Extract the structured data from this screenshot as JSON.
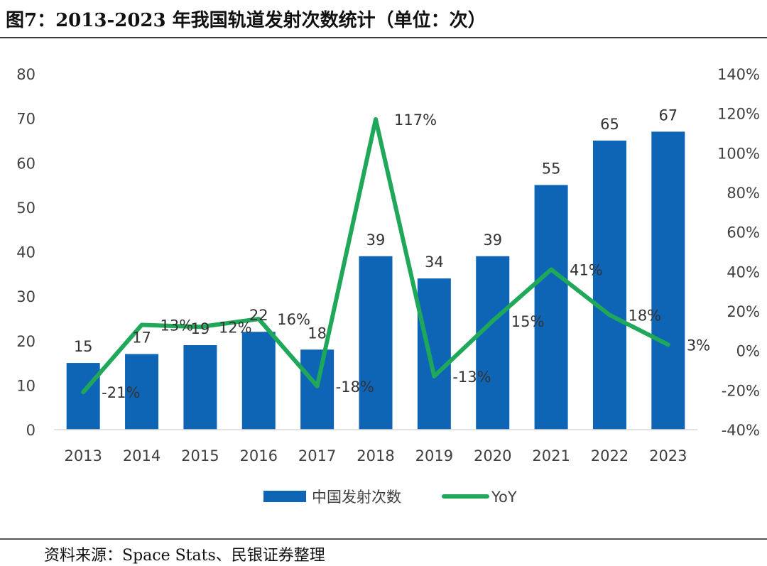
{
  "figure": {
    "title": "图7：2013-2023 年我国轨道发射次数统计（单位：次）",
    "source": "资料来源：Space Stats、民银证券整理"
  },
  "colors": {
    "bar": "#0f65b5",
    "line": "#1fa85a",
    "axis": "#d9d9d9"
  },
  "chart_data": {
    "type": "bar",
    "title": "2013-2023 年我国轨道发射次数统计（单位：次）",
    "categories": [
      "2013",
      "2014",
      "2015",
      "2016",
      "2017",
      "2018",
      "2019",
      "2020",
      "2021",
      "2022",
      "2023"
    ],
    "series": [
      {
        "name": "中国发射次数",
        "type": "bar",
        "axis": "left",
        "values": [
          15,
          17,
          19,
          22,
          18,
          39,
          34,
          39,
          55,
          65,
          67
        ],
        "labels": [
          "15",
          "17",
          "19",
          "22",
          "18",
          "39",
          "34",
          "39",
          "55",
          "65",
          "67"
        ]
      },
      {
        "name": "YoY",
        "type": "line",
        "axis": "right",
        "values": [
          -21,
          13,
          12,
          16,
          -18,
          117,
          -13,
          15,
          41,
          18,
          3
        ],
        "labels": [
          "-21%",
          "13%",
          "12%",
          "16%",
          "-18%",
          "117%",
          "-13%",
          "15%",
          "41%",
          "18%",
          "3%"
        ]
      }
    ],
    "left_axis": {
      "ylim": [
        0,
        80
      ],
      "ticks": [
        "0",
        "10",
        "20",
        "30",
        "40",
        "50",
        "60",
        "70",
        "80"
      ]
    },
    "right_axis": {
      "ylim": [
        -40,
        140
      ],
      "ticks": [
        "-40%",
        "-20%",
        "0%",
        "20%",
        "40%",
        "60%",
        "80%",
        "100%",
        "120%",
        "140%"
      ]
    },
    "legend_position": "bottom-center",
    "grid": false
  }
}
